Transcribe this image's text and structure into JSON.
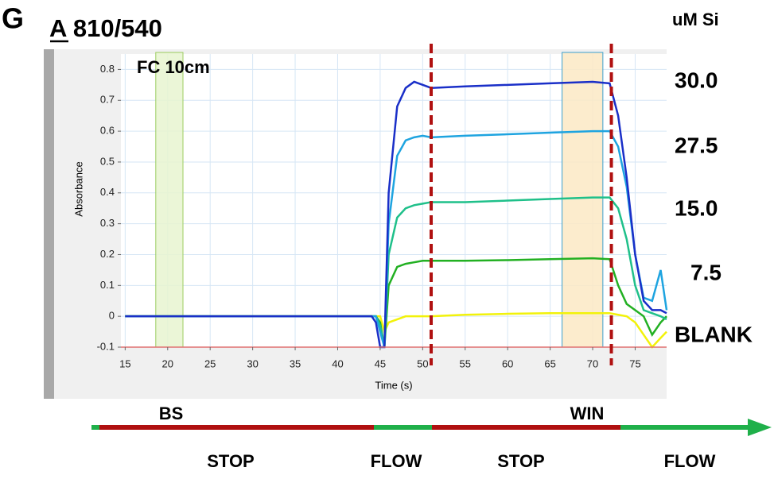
{
  "chart_data": {
    "type": "line",
    "panel_label": "G",
    "title": "A 810/540",
    "subtitle": "FC 10cm",
    "legend_title": "uM Si",
    "x_label": "Time (s)",
    "y_label": "Absorbance",
    "xlim": [
      14.5,
      78.7
    ],
    "ylim": [
      -0.1,
      0.85
    ],
    "xticks": [
      15,
      20,
      25,
      30,
      35,
      40,
      45,
      50,
      55,
      60,
      65,
      70,
      75
    ],
    "yticks": [
      -0.1,
      0,
      0.1,
      0.2,
      0.3,
      0.4,
      0.5,
      0.6,
      0.7,
      0.8
    ],
    "grid": true,
    "markers": [
      51,
      72.2
    ],
    "regions": [
      {
        "label": "BS",
        "x": [
          18.6,
          21.8
        ],
        "color": "#e8f5d0"
      },
      {
        "label": "WIN",
        "x": [
          66.4,
          71.2
        ],
        "color": "#fbe9c4"
      }
    ],
    "phases": [
      "STOP",
      "FLOW",
      "STOP",
      "FLOW"
    ],
    "x": [
      15,
      44,
      44.5,
      45,
      45.5,
      46,
      47,
      48,
      49,
      50,
      51,
      55,
      60,
      65,
      70,
      72,
      73,
      74,
      75,
      76,
      77,
      78,
      78.7
    ],
    "series": [
      {
        "name": "BLANK",
        "color": "#f2f20a",
        "values": [
          0,
          0,
          0,
          0,
          -0.05,
          -0.02,
          -0.01,
          0,
          0,
          0,
          0,
          0.005,
          0.008,
          0.01,
          0.01,
          0.01,
          0.005,
          0,
          -0.02,
          -0.06,
          -0.1,
          -0.07,
          -0.05
        ]
      },
      {
        "name": "7.5",
        "color": "#22b022",
        "values": [
          0,
          0,
          0,
          -0.02,
          -0.1,
          0.1,
          0.16,
          0.17,
          0.175,
          0.18,
          0.18,
          0.18,
          0.182,
          0.185,
          0.188,
          0.185,
          0.1,
          0.04,
          0.02,
          0,
          -0.06,
          -0.02,
          0
        ]
      },
      {
        "name": "15.0",
        "color": "#1fc08a",
        "values": [
          0,
          0,
          0,
          -0.03,
          -0.1,
          0.2,
          0.32,
          0.35,
          0.36,
          0.365,
          0.37,
          0.37,
          0.375,
          0.38,
          0.385,
          0.385,
          0.35,
          0.25,
          0.1,
          0.02,
          0.01,
          0,
          -0.01
        ]
      },
      {
        "name": "27.5",
        "color": "#1ea4e0",
        "values": [
          0,
          0,
          0,
          -0.05,
          -0.1,
          0.3,
          0.52,
          0.57,
          0.58,
          0.585,
          0.58,
          0.585,
          0.59,
          0.595,
          0.6,
          0.6,
          0.55,
          0.42,
          0.2,
          0.06,
          0.05,
          0.15,
          0.02
        ]
      },
      {
        "name": "30.0",
        "color": "#1a2fc8",
        "values": [
          0,
          0,
          -0.02,
          -0.1,
          -0.1,
          0.4,
          0.68,
          0.74,
          0.76,
          0.75,
          0.74,
          0.745,
          0.75,
          0.755,
          0.76,
          0.755,
          0.65,
          0.45,
          0.2,
          0.05,
          0.02,
          0.02,
          0.01
        ]
      }
    ]
  }
}
